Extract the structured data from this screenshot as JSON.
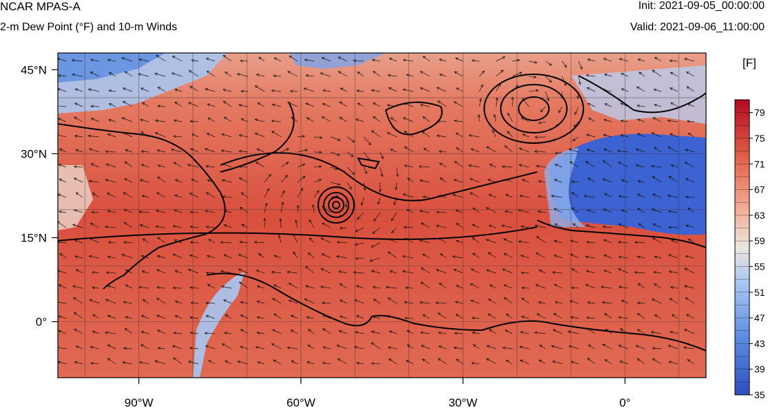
{
  "header": {
    "model_title": "NCAR MPAS-A",
    "field_title": "2-m Dew Point (°F) and 10-m Winds",
    "init_text": "Init: 2021-09-05_00:00:00",
    "valid_text": "Valid: 2021-09-06_11:00:00"
  },
  "map": {
    "lon_range": [
      -105,
      15
    ],
    "lat_range": [
      -10,
      48
    ],
    "lat_ticks": [
      {
        "value": 45,
        "label": "45°N"
      },
      {
        "value": 30,
        "label": "30°N"
      },
      {
        "value": 15,
        "label": "15°N"
      },
      {
        "value": 0,
        "label": "0°"
      }
    ],
    "lon_ticks": [
      {
        "value": -90,
        "label": "90°W"
      },
      {
        "value": -60,
        "label": "60°W"
      },
      {
        "value": -30,
        "label": "30°W"
      },
      {
        "value": 0,
        "label": "0°"
      }
    ],
    "hurricane_center": {
      "lon": -54,
      "lat": 21.5
    },
    "low_pressure_center": {
      "lon": -17,
      "lat": 39.5
    },
    "dry_region": "Sahara / West Africa (blue, low dew point)"
  },
  "colorbar": {
    "units_label": "[F]",
    "labels": [
      "79",
      "75",
      "71",
      "67",
      "63",
      "59",
      "55",
      "51",
      "47",
      "43",
      "39",
      "35"
    ],
    "min": 35,
    "max": 81,
    "low_color": "#2e4fbf",
    "mid_color": "#ece6df",
    "high_color": "#b2091f"
  }
}
